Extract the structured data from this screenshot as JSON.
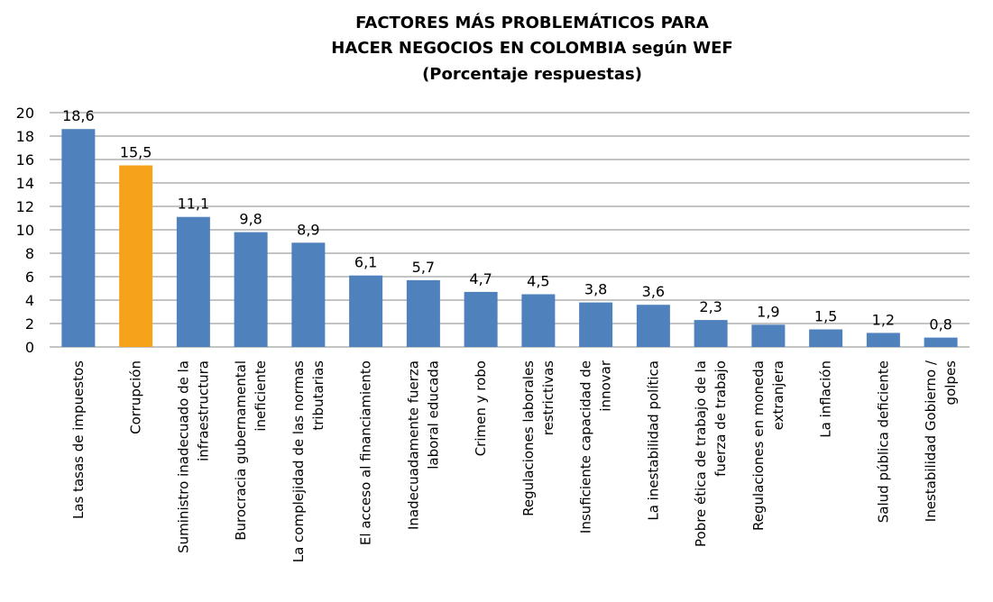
{
  "chart_data": {
    "type": "bar",
    "title": [
      "FACTORES MÁS PROBLEMÁTICOS PARA",
      "HACER NEGOCIOS EN COLOMBIA según WEF",
      "(Porcentaje respuestas)"
    ],
    "categories": [
      "Las tasas de impuestos",
      "Corrupción",
      "Suministro inadecuado de la\ninfraestructura",
      "Burocracia gubernamental\nineficiente",
      "La complejidad de las normas\ntributarias",
      "El acceso al financiamiento",
      "Inadecuadamente fuerza\nlaboral educada",
      "Crimen y robo",
      "Regulaciones laborales\nrestrictivas",
      "Insuficiente capacidad de\ninnovar",
      "La inestabilidad política",
      "Pobre ética de trabajo de la\nfuerza de trabajo",
      "Regulaciones en moneda\nextranjera",
      "La inflación",
      "Salud pública deficiente",
      "Inestabilidad Gobierno /\ngolpes"
    ],
    "values": [
      18.6,
      15.5,
      11.1,
      9.8,
      8.9,
      6.1,
      5.7,
      4.7,
      4.5,
      3.8,
      3.6,
      2.3,
      1.9,
      1.5,
      1.2,
      0.8
    ],
    "value_labels": [
      "18,6",
      "15,5",
      "11,1",
      "9,8",
      "8,9",
      "6,1",
      "5,7",
      "4,7",
      "4,5",
      "3,8",
      "3,6",
      "2,3",
      "1,9",
      "1,5",
      "1,2",
      "0,8"
    ],
    "colors": [
      "#4f81bd",
      "#f6a31b",
      "#4f81bd",
      "#4f81bd",
      "#4f81bd",
      "#4f81bd",
      "#4f81bd",
      "#4f81bd",
      "#4f81bd",
      "#4f81bd",
      "#4f81bd",
      "#4f81bd",
      "#4f81bd",
      "#4f81bd",
      "#4f81bd",
      "#4f81bd"
    ],
    "ylim": [
      0,
      20
    ],
    "yticks": [
      0,
      2,
      4,
      6,
      8,
      10,
      12,
      14,
      16,
      18,
      20
    ],
    "grid": true
  }
}
